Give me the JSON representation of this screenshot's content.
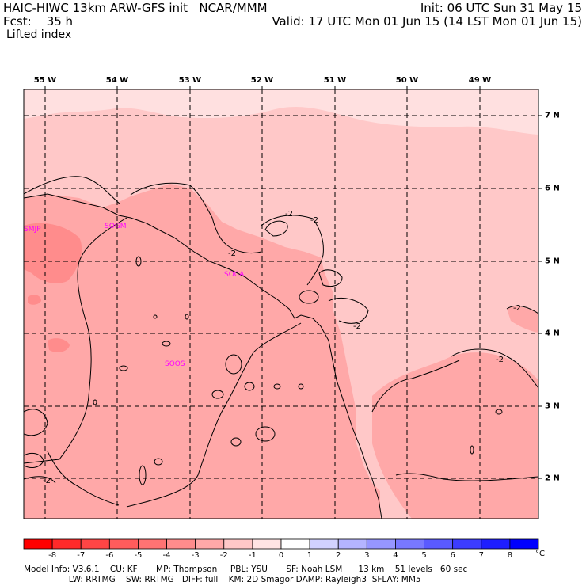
{
  "header": {
    "model_line": "HAIC-HIWC 13km ARW-GFS init   NCAR/MMM",
    "fcst_line": "Fcst:    35 h",
    "init_line": "Init: 06 UTC Sun 31 May 15",
    "valid_line": "Valid: 17 UTC Mon 01 Jun 15 (14 LST Mon 01 Jun 15)",
    "field_name": "Lifted index"
  },
  "map": {
    "lon_labels": [
      "55 W",
      "54 W",
      "53 W",
      "52 W",
      "51 W",
      "50 W",
      "49 W"
    ],
    "lat_labels": [
      "7 N",
      "6 N",
      "5 N",
      "4 N",
      "3 N",
      "2 N"
    ],
    "stations": [
      "SMJP",
      "SOGM",
      "SOCA",
      "SOOS"
    ],
    "contour_label": "-2",
    "colors": {
      "ocean": "#ffc8c8",
      "far_sea": "#ffe0e0",
      "land": "#ffa8a8",
      "strong": "#ff8c8c",
      "contour": "#000000",
      "station": "#ff00ff",
      "grid": "#000000"
    }
  },
  "colorbar": {
    "unit": "°C",
    "labels": [
      "-8",
      "-7",
      "-6",
      "-5",
      "-4",
      "-3",
      "-2",
      "-1",
      "0",
      "1",
      "2",
      "3",
      "4",
      "5",
      "6",
      "7",
      "8"
    ],
    "colors": [
      "#ff0000",
      "#ff2a2a",
      "#ff4545",
      "#ff5c5c",
      "#ff7373",
      "#ff8c8c",
      "#ffa8a8",
      "#ffc8c8",
      "#ffe4e4",
      "#ffffff",
      "#d2d2ff",
      "#b4b4ff",
      "#9696ff",
      "#7878ff",
      "#5a5aff",
      "#3c3cff",
      "#1e1eff",
      "#0000ff"
    ]
  },
  "footer": {
    "line1": "Model Info: V3.6.1    CU: KF       MP: Thompson     PBL: YSU       SF: Noah LSM      13 km    51 levels   60 sec",
    "line2": "                 LW: RRTMG    SW: RRTMG   DIFF: full    KM: 2D Smagor DAMP: Rayleigh3  SFLAY: MM5"
  }
}
